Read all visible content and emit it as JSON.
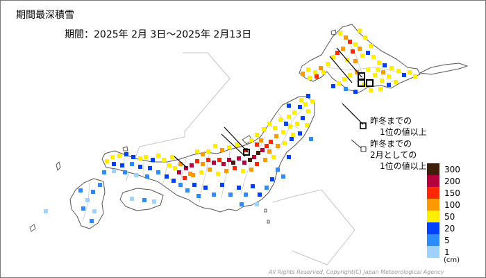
{
  "title": "期間最深積雪",
  "period": "期間：2025年 2月 3日～2025年 2月13日",
  "notes": {
    "record_all": {
      "line1": "昨冬までの",
      "line2": "1位の値以上"
    },
    "record_feb": {
      "line1": "昨冬までの",
      "line2": "2月としての",
      "line3": "1位の値以上"
    }
  },
  "legend": {
    "unit": "(cm)",
    "classes": [
      {
        "label": "300",
        "color": "#3f1e0a"
      },
      {
        "label": "200",
        "color": "#b4003c"
      },
      {
        "label": "150",
        "color": "#ff2800"
      },
      {
        "label": "100",
        "color": "#ff9900"
      },
      {
        "label": "50",
        "color": "#ffee00"
      },
      {
        "label": "20",
        "color": "#0041ff"
      },
      {
        "label": "5",
        "color": "#2a8cff"
      },
      {
        "label": "1",
        "color": "#a0d2ff"
      }
    ]
  },
  "copyright": "All Rights Reserved, Copyright(C) Japan Meteorological Agency"
}
